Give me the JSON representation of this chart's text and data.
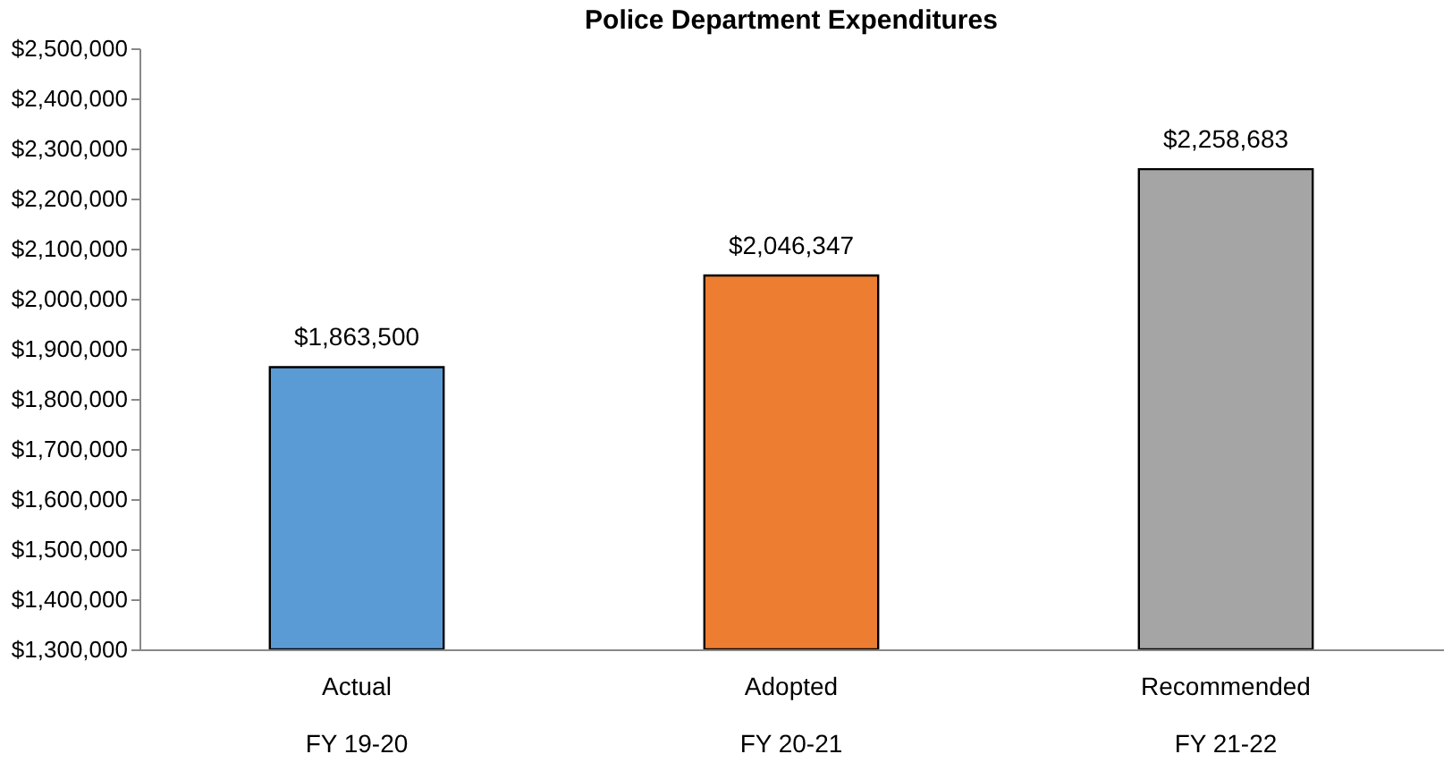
{
  "chart_data": {
    "type": "bar",
    "title": "Police Department Expenditures",
    "categories": [
      "Actual\nFY 19-20",
      "Adopted\nFY 20-21",
      "Recommended\nFY 21-22"
    ],
    "values": [
      1863500,
      2046347,
      2258683
    ],
    "colors": [
      "#5b9bd5",
      "#ed7d31",
      "#a5a5a5"
    ],
    "ylim": [
      1300000,
      2500000
    ],
    "yticks": [
      {
        "value": 1300000,
        "label": "$1,300,000"
      },
      {
        "value": 1400000,
        "label": "$1,400,000"
      },
      {
        "value": 1500000,
        "label": "$1,500,000"
      },
      {
        "value": 1600000,
        "label": "$1,600,000"
      },
      {
        "value": 1700000,
        "label": "$1,700,000"
      },
      {
        "value": 1800000,
        "label": "$1,800,000"
      },
      {
        "value": 1900000,
        "label": "$1,900,000"
      },
      {
        "value": 2000000,
        "label": "$2,000,000"
      },
      {
        "value": 2100000,
        "label": "$2,100,000"
      },
      {
        "value": 2200000,
        "label": "$2,200,000"
      },
      {
        "value": 2300000,
        "label": "$2,300,000"
      },
      {
        "value": 2400000,
        "label": "$2,400,000"
      },
      {
        "value": 2500000,
        "label": "$2,500,000"
      }
    ],
    "value_labels": [
      "$1,863,500",
      "$2,046,347",
      "$2,258,683"
    ],
    "grid": false
  }
}
